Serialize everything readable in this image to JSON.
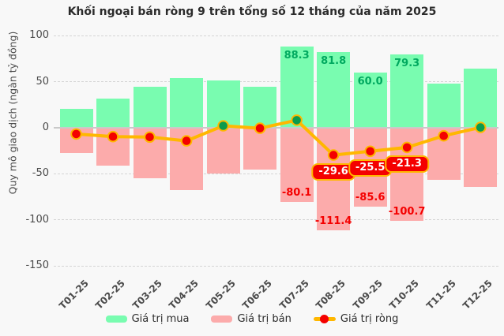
{
  "title": "Khối ngoại bán ròng 9 trên tổng số 12 tháng của năm 2025",
  "y_axis": {
    "label": "Quy mô giao dịch (ngàn tỷ đồng)",
    "ticks": [
      100,
      50,
      0,
      -50,
      -100,
      -150
    ]
  },
  "legend": [
    {
      "label": "Giá trị mua"
    },
    {
      "label": "Giá trị bán"
    },
    {
      "label": "Giá trị ròng"
    }
  ],
  "colors": {
    "buy_bar": "#79fcb0",
    "buy_label": "#00a95f",
    "sell_bar": "#fcabab",
    "sell_label": "#f40000",
    "net_line": "#ffb700",
    "net_dot_negative": "#f40000",
    "net_dot_positive": "#0b9b4c",
    "badge_bg": "#f40000",
    "badge_border": "#ffb700",
    "axis_text": "#4b4b4b"
  },
  "chart_data": {
    "type": "bar",
    "title": "Khối ngoại bán ròng 9 trên tổng số 12 tháng của năm 2025",
    "xlabel": "",
    "ylabel": "Quy mô giao dịch (ngàn tỷ đồng)",
    "ylim": [
      -150,
      100
    ],
    "grid": true,
    "legend_position": "bottom",
    "categories": [
      "T01-25",
      "T02-25",
      "T03-25",
      "T04-25",
      "T05-25",
      "T06-25",
      "T07-25",
      "T08-25",
      "T09-25",
      "T10-25",
      "T11-25",
      "T12-25"
    ],
    "series": [
      {
        "name": "Giá trị mua",
        "kind": "bar",
        "color": "#79fcb0",
        "label_color": "#00a95f",
        "values": [
          20.3,
          31.9,
          44.4,
          53.8,
          51.5,
          44.8,
          88.3,
          81.8,
          60.0,
          79.3,
          47.7,
          64.3
        ],
        "shown_labels": [
          null,
          null,
          null,
          null,
          null,
          null,
          "88.3",
          "81.8",
          "60.0",
          "79.3",
          null,
          null
        ]
      },
      {
        "name": "Giá trị bán",
        "kind": "bar",
        "color": "#fcabab",
        "label_color": "#f40000",
        "values": [
          -27.1,
          -41.5,
          -54.5,
          -68.0,
          -49.4,
          -45.3,
          -80.1,
          -111.4,
          -85.6,
          -100.7,
          -56.4,
          -64.0
        ],
        "shown_labels": [
          null,
          null,
          null,
          null,
          null,
          null,
          "-80.1",
          "-111.4",
          "-85.6",
          "-100.7",
          null,
          null
        ]
      },
      {
        "name": "Giá trị ròng",
        "kind": "line",
        "color": "#ffb700",
        "dot_negative": "#f40000",
        "dot_positive": "#0b9b4c",
        "values": [
          -6.8,
          -9.6,
          -10.1,
          -14.2,
          2.1,
          -0.5,
          8.2,
          -29.6,
          -25.5,
          -21.3,
          -8.7,
          0.3
        ],
        "shown_labels": [
          null,
          null,
          null,
          null,
          null,
          null,
          null,
          "-29.6",
          "-25.5",
          "-21.3",
          null,
          null
        ]
      }
    ]
  }
}
